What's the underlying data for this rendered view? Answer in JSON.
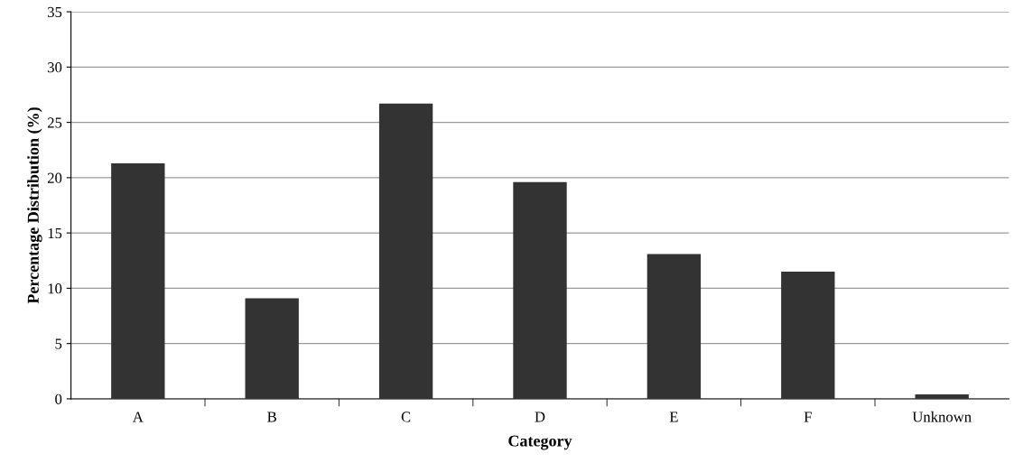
{
  "chart_data": {
    "type": "bar",
    "xlabel": "Category",
    "ylabel": "Percentage Distribution (%)",
    "categories": [
      "A",
      "B",
      "C",
      "D",
      "E",
      "F",
      "Unknown"
    ],
    "values": [
      21.3,
      9.1,
      26.7,
      19.6,
      13.1,
      11.5,
      0.4
    ],
    "color": "#333333",
    "ylim": [
      0,
      35
    ],
    "yticks": [
      0,
      5,
      10,
      15,
      20,
      25,
      30,
      35
    ],
    "grid": "y"
  }
}
